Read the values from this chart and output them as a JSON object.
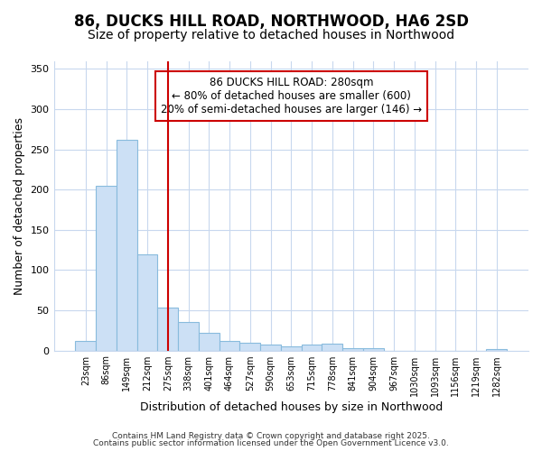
{
  "title1": "86, DUCKS HILL ROAD, NORTHWOOD, HA6 2SD",
  "title2": "Size of property relative to detached houses in Northwood",
  "xlabel": "Distribution of detached houses by size in Northwood",
  "ylabel": "Number of detached properties",
  "categories": [
    "23sqm",
    "86sqm",
    "149sqm",
    "212sqm",
    "275sqm",
    "338sqm",
    "401sqm",
    "464sqm",
    "527sqm",
    "590sqm",
    "653sqm",
    "715sqm",
    "778sqm",
    "841sqm",
    "904sqm",
    "967sqm",
    "1030sqm",
    "1093sqm",
    "1156sqm",
    "1219sqm",
    "1282sqm"
  ],
  "values": [
    12,
    205,
    262,
    120,
    53,
    35,
    22,
    12,
    10,
    7,
    5,
    7,
    9,
    3,
    3,
    0,
    0,
    0,
    0,
    0,
    2
  ],
  "bar_color": "#cce0f5",
  "bar_edge_color": "#88bbdd",
  "red_line_x": 4,
  "annotation_line1": "86 DUCKS HILL ROAD: 280sqm",
  "annotation_line2": "← 80% of detached houses are smaller (600)",
  "annotation_line3": "20% of semi-detached houses are larger (146) →",
  "annotation_box_color": "white",
  "annotation_box_edge_color": "#cc0000",
  "red_line_color": "#cc0000",
  "ylim": [
    0,
    360
  ],
  "yticks": [
    0,
    50,
    100,
    150,
    200,
    250,
    300,
    350
  ],
  "footer1": "Contains HM Land Registry data © Crown copyright and database right 2025.",
  "footer2": "Contains public sector information licensed under the Open Government Licence v3.0.",
  "bg_color": "#ffffff",
  "grid_color": "#c8d8ee",
  "title1_fontsize": 12,
  "title2_fontsize": 10,
  "annotation_fontsize": 8.5,
  "xlabel_fontsize": 9,
  "ylabel_fontsize": 9
}
